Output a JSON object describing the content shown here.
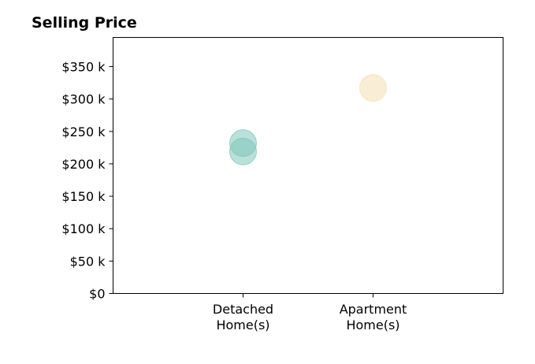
{
  "chart_data": {
    "type": "scatter",
    "title": "Selling Price",
    "xlabel": "",
    "ylabel": "",
    "categories": [
      [
        "Detached",
        "Home(s)"
      ],
      [
        "Apartment",
        "Home(s)"
      ]
    ],
    "x_range": [
      0,
      3
    ],
    "ylim": [
      0,
      395000
    ],
    "y_ticks": [
      0,
      50000,
      100000,
      150000,
      200000,
      250000,
      300000,
      350000
    ],
    "y_tick_labels": [
      "$0",
      "$50 k",
      "$100 k",
      "$150 k",
      "$200 k",
      "$250 k",
      "$300 k",
      "$350 k"
    ],
    "grid": false,
    "points": [
      {
        "category_index": 0,
        "value": 232000,
        "color": "#7fc7bc"
      },
      {
        "category_index": 0,
        "value": 219000,
        "color": "#7fc7bc"
      },
      {
        "category_index": 1,
        "value": 317000,
        "color": "#f5dfb4"
      }
    ]
  }
}
